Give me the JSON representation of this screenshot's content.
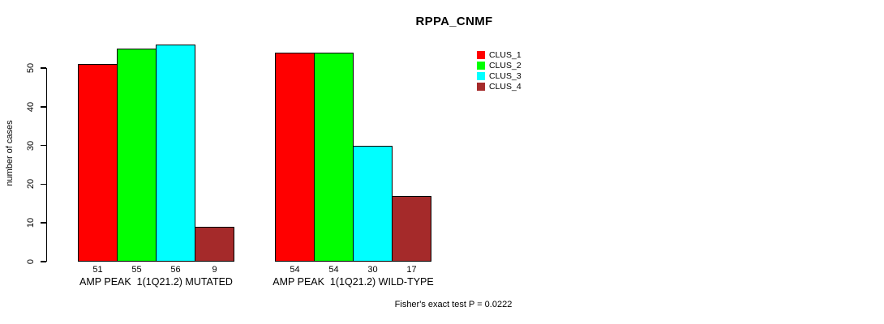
{
  "chart_data": {
    "type": "bar",
    "title": "RPPA_CNMF",
    "ylabel": "number of cases",
    "xlabel": "",
    "categories": [
      "AMP PEAK  1(1Q21.2) MUTATED",
      "AMP PEAK  1(1Q21.2) WILD-TYPE"
    ],
    "series": [
      {
        "name": "CLUS_1",
        "color": "#FF0000",
        "values": [
          51,
          54
        ]
      },
      {
        "name": "CLUS_2",
        "color": "#00FF00",
        "values": [
          55,
          54
        ]
      },
      {
        "name": "CLUS_3",
        "color": "#00FFFF",
        "values": [
          56,
          30
        ]
      },
      {
        "name": "CLUS_4",
        "color": "#A52A2A",
        "values": [
          9,
          17
        ]
      }
    ],
    "bar_value_labels": [
      [
        51,
        55,
        56,
        9
      ],
      [
        54,
        54,
        30,
        17
      ]
    ],
    "ylim": [
      0,
      56
    ],
    "yticks": [
      0,
      10,
      20,
      30,
      40,
      50
    ],
    "grid": false,
    "legend_position": "top-right",
    "annotation": "Fisher's exact test P = 0.0222",
    "bar_border_color": "#000000",
    "axis_color": "#000000"
  }
}
